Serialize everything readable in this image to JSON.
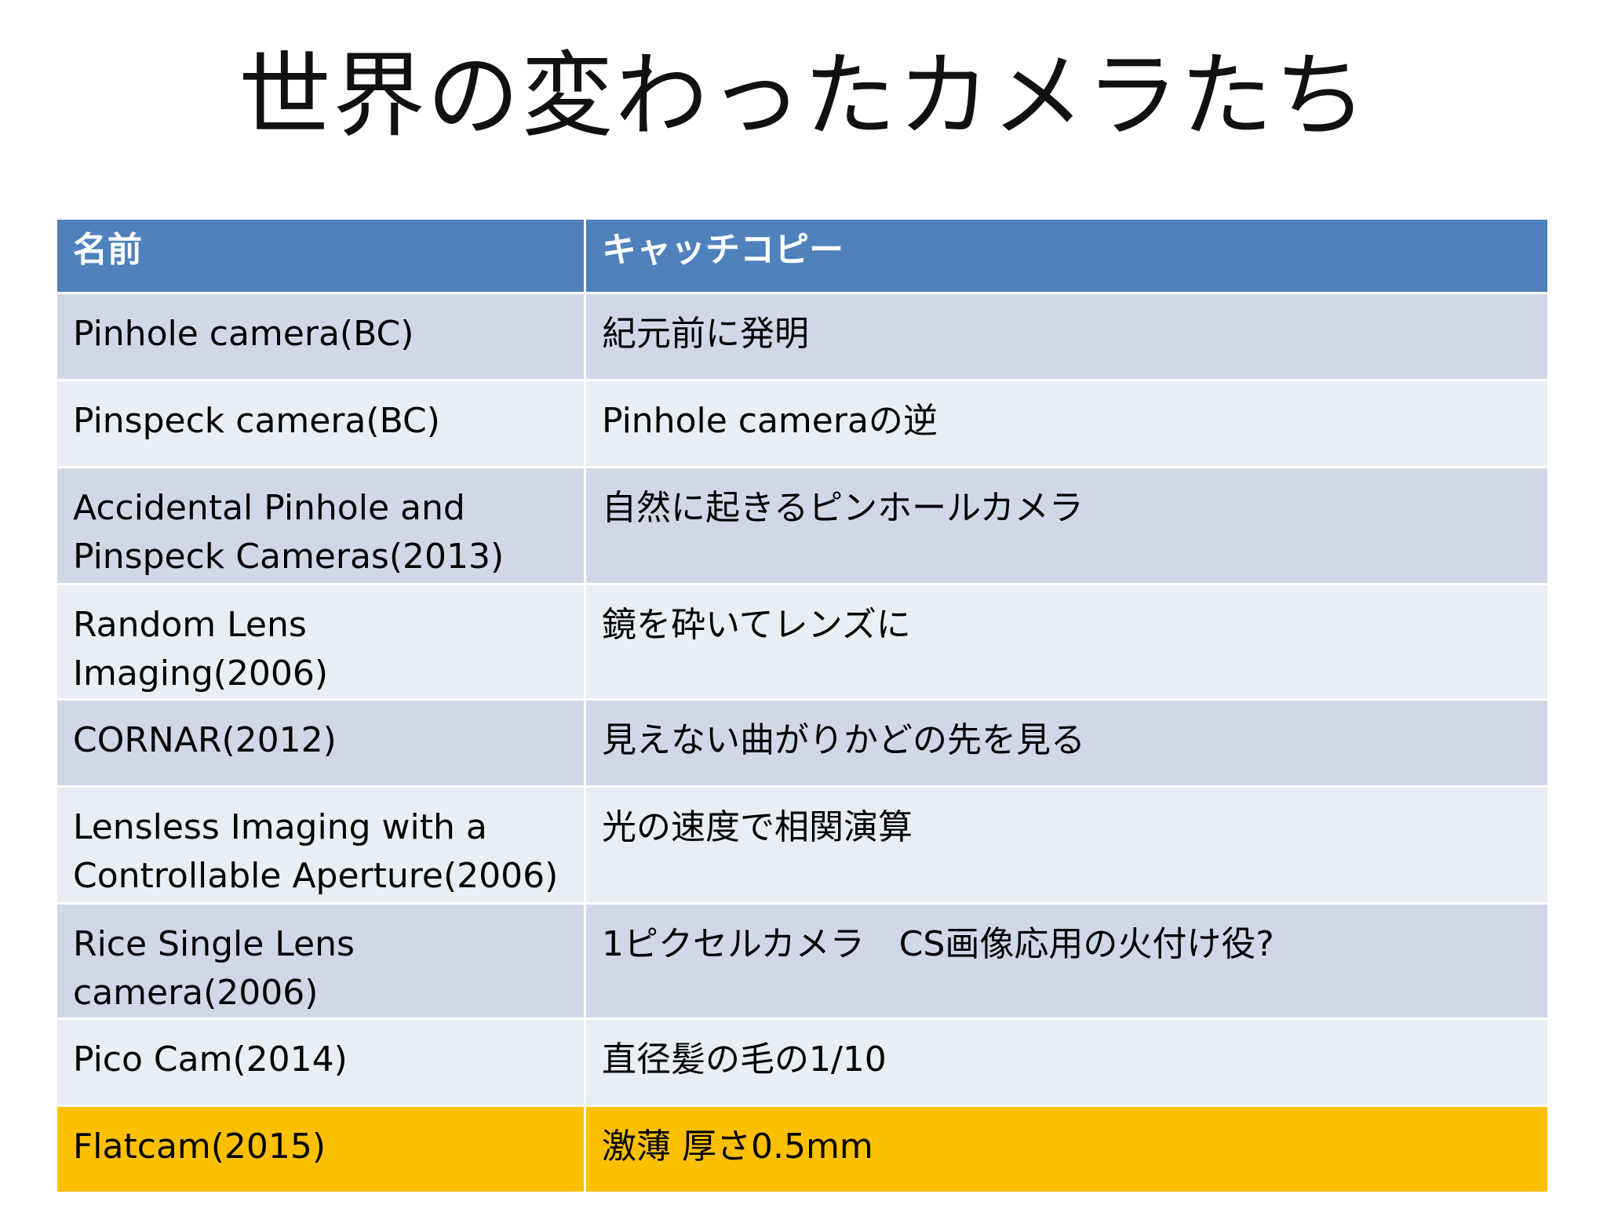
{
  "slide": {
    "title": "世界の変わったカメラたち"
  },
  "table": {
    "headers": [
      "名前",
      "キャッチコピー"
    ],
    "rows": [
      {
        "name": "Pinhole camera(BC)",
        "catch": "紀元前に発明"
      },
      {
        "name": "Pinspeck camera(BC)",
        "catch": "Pinhole cameraの逆"
      },
      {
        "name": "Accidental Pinhole and Pinspeck Cameras(2013)",
        "catch": "自然に起きるピンホールカメラ"
      },
      {
        "name": "Random Lens Imaging(2006)",
        "catch": "鏡を砕いてレンズに"
      },
      {
        "name": "CORNAR(2012)",
        "catch": "見えない曲がりかどの先を見る"
      },
      {
        "name": "Lensless Imaging with a Controllable Aperture(2006)",
        "catch": "光の速度で相関演算"
      },
      {
        "name": "Rice Single Lens camera(2006)",
        "catch": "1ピクセルカメラ　CS画像応用の火付け役?"
      },
      {
        "name": "Pico Cam(2014)",
        "catch": "直径髪の毛の1/10"
      },
      {
        "name": "Flatcam(2015)",
        "catch": "激薄 厚さ0.5mm"
      }
    ]
  },
  "colors": {
    "header_bg": "#4f81bd",
    "row_odd_bg": "#d0d8e8",
    "row_even_bg": "#e9edf4",
    "highlight_bg": "#fcc000"
  }
}
